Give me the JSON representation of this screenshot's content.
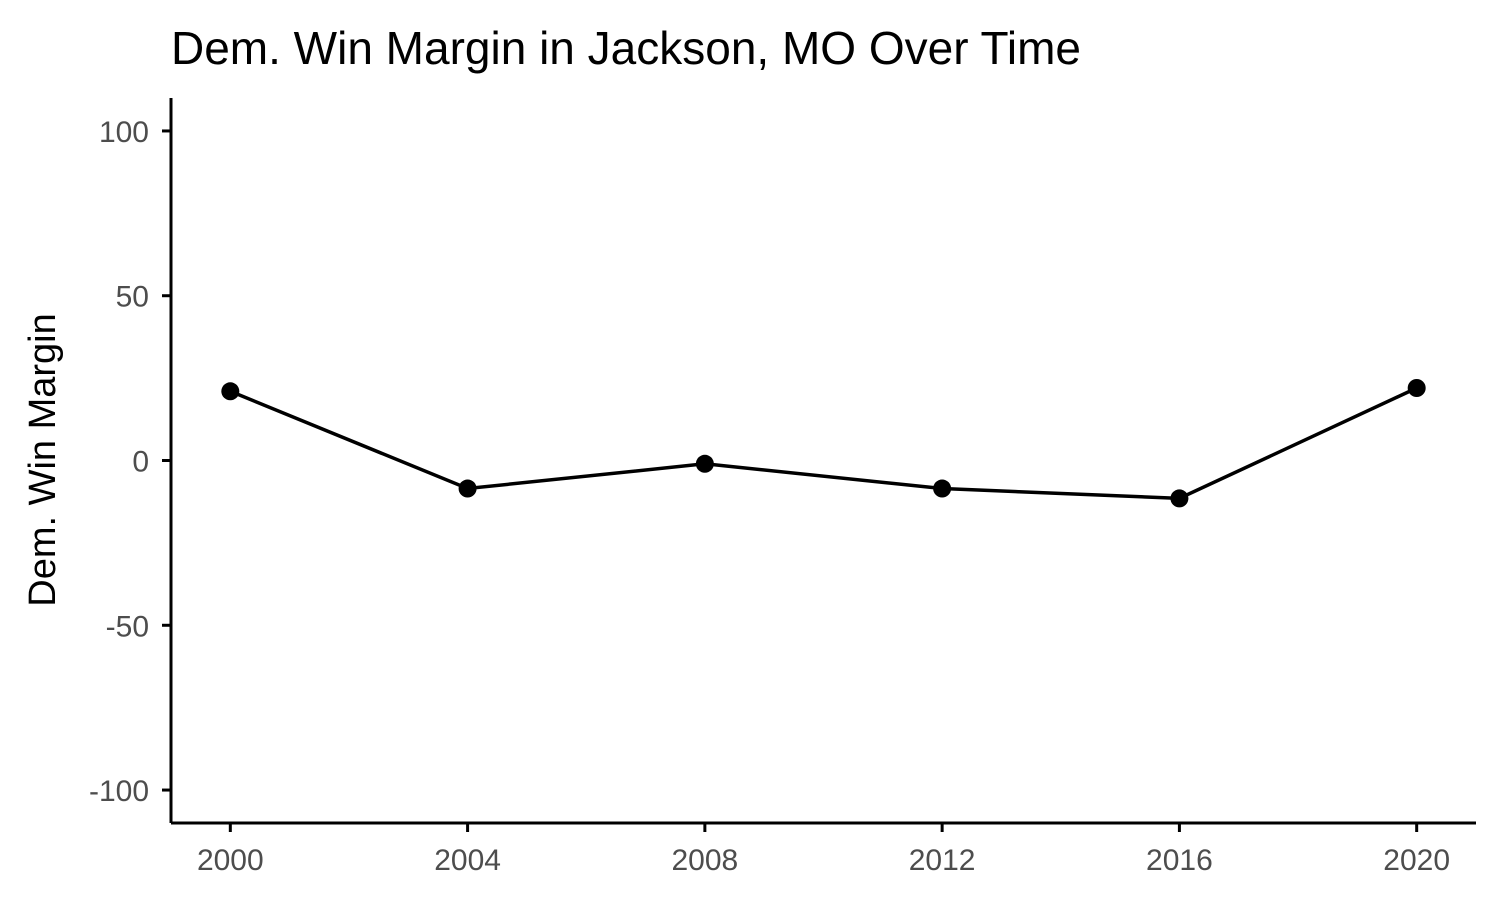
{
  "chart_data": {
    "type": "line",
    "title": "Dem. Win Margin in Jackson, MO Over Time",
    "xlabel": "",
    "ylabel": "Dem. Win Margin",
    "x": [
      2000,
      2004,
      2008,
      2012,
      2016,
      2020
    ],
    "series": [
      {
        "values": [
          21,
          -8.5,
          -1,
          -8.5,
          -11.5,
          22
        ]
      }
    ],
    "xticks": [
      "2000",
      "2004",
      "2008",
      "2012",
      "2016",
      "2020"
    ],
    "yticks": [
      "100",
      "50",
      "0",
      "-50",
      "-100"
    ],
    "xlim": [
      1999,
      2021
    ],
    "ylim": [
      -110,
      110
    ],
    "grid": false,
    "legend": "none",
    "colors": {
      "line": "#000000",
      "point": "#000000",
      "tick_text": "#4d4d4d"
    }
  }
}
